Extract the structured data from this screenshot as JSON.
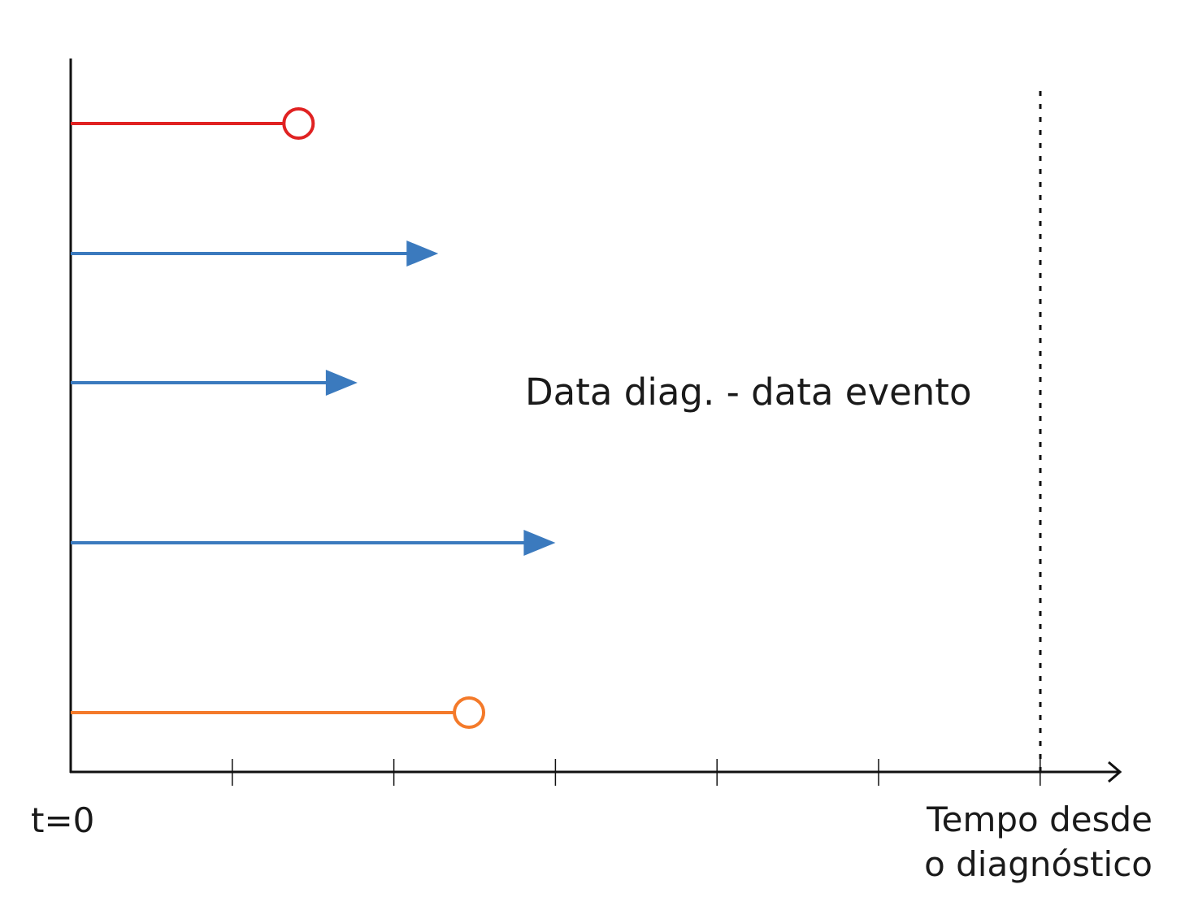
{
  "origin_label": "t=0",
  "x_axis_label": {
    "line1": "Tempo desde",
    "line2": "o diagnóstico"
  },
  "annotation": "Data diag. - data evento",
  "colors": {
    "axis": "#111111",
    "red": "#e02222",
    "blue": "#3b7abe",
    "orange": "#f47a2a",
    "dotted": "#111111"
  },
  "subjects": [
    {
      "end": 2.82,
      "type": "event",
      "color": "red"
    },
    {
      "end": 4.55,
      "type": "censored",
      "color": "blue"
    },
    {
      "end": 3.55,
      "type": "censored",
      "color": "blue"
    },
    {
      "end": 6.0,
      "type": "censored",
      "color": "blue"
    },
    {
      "end": 4.93,
      "type": "event",
      "color": "orange"
    }
  ],
  "x_ticks": [
    0,
    2,
    4,
    6,
    8,
    10,
    12
  ],
  "cutoff": 12
}
